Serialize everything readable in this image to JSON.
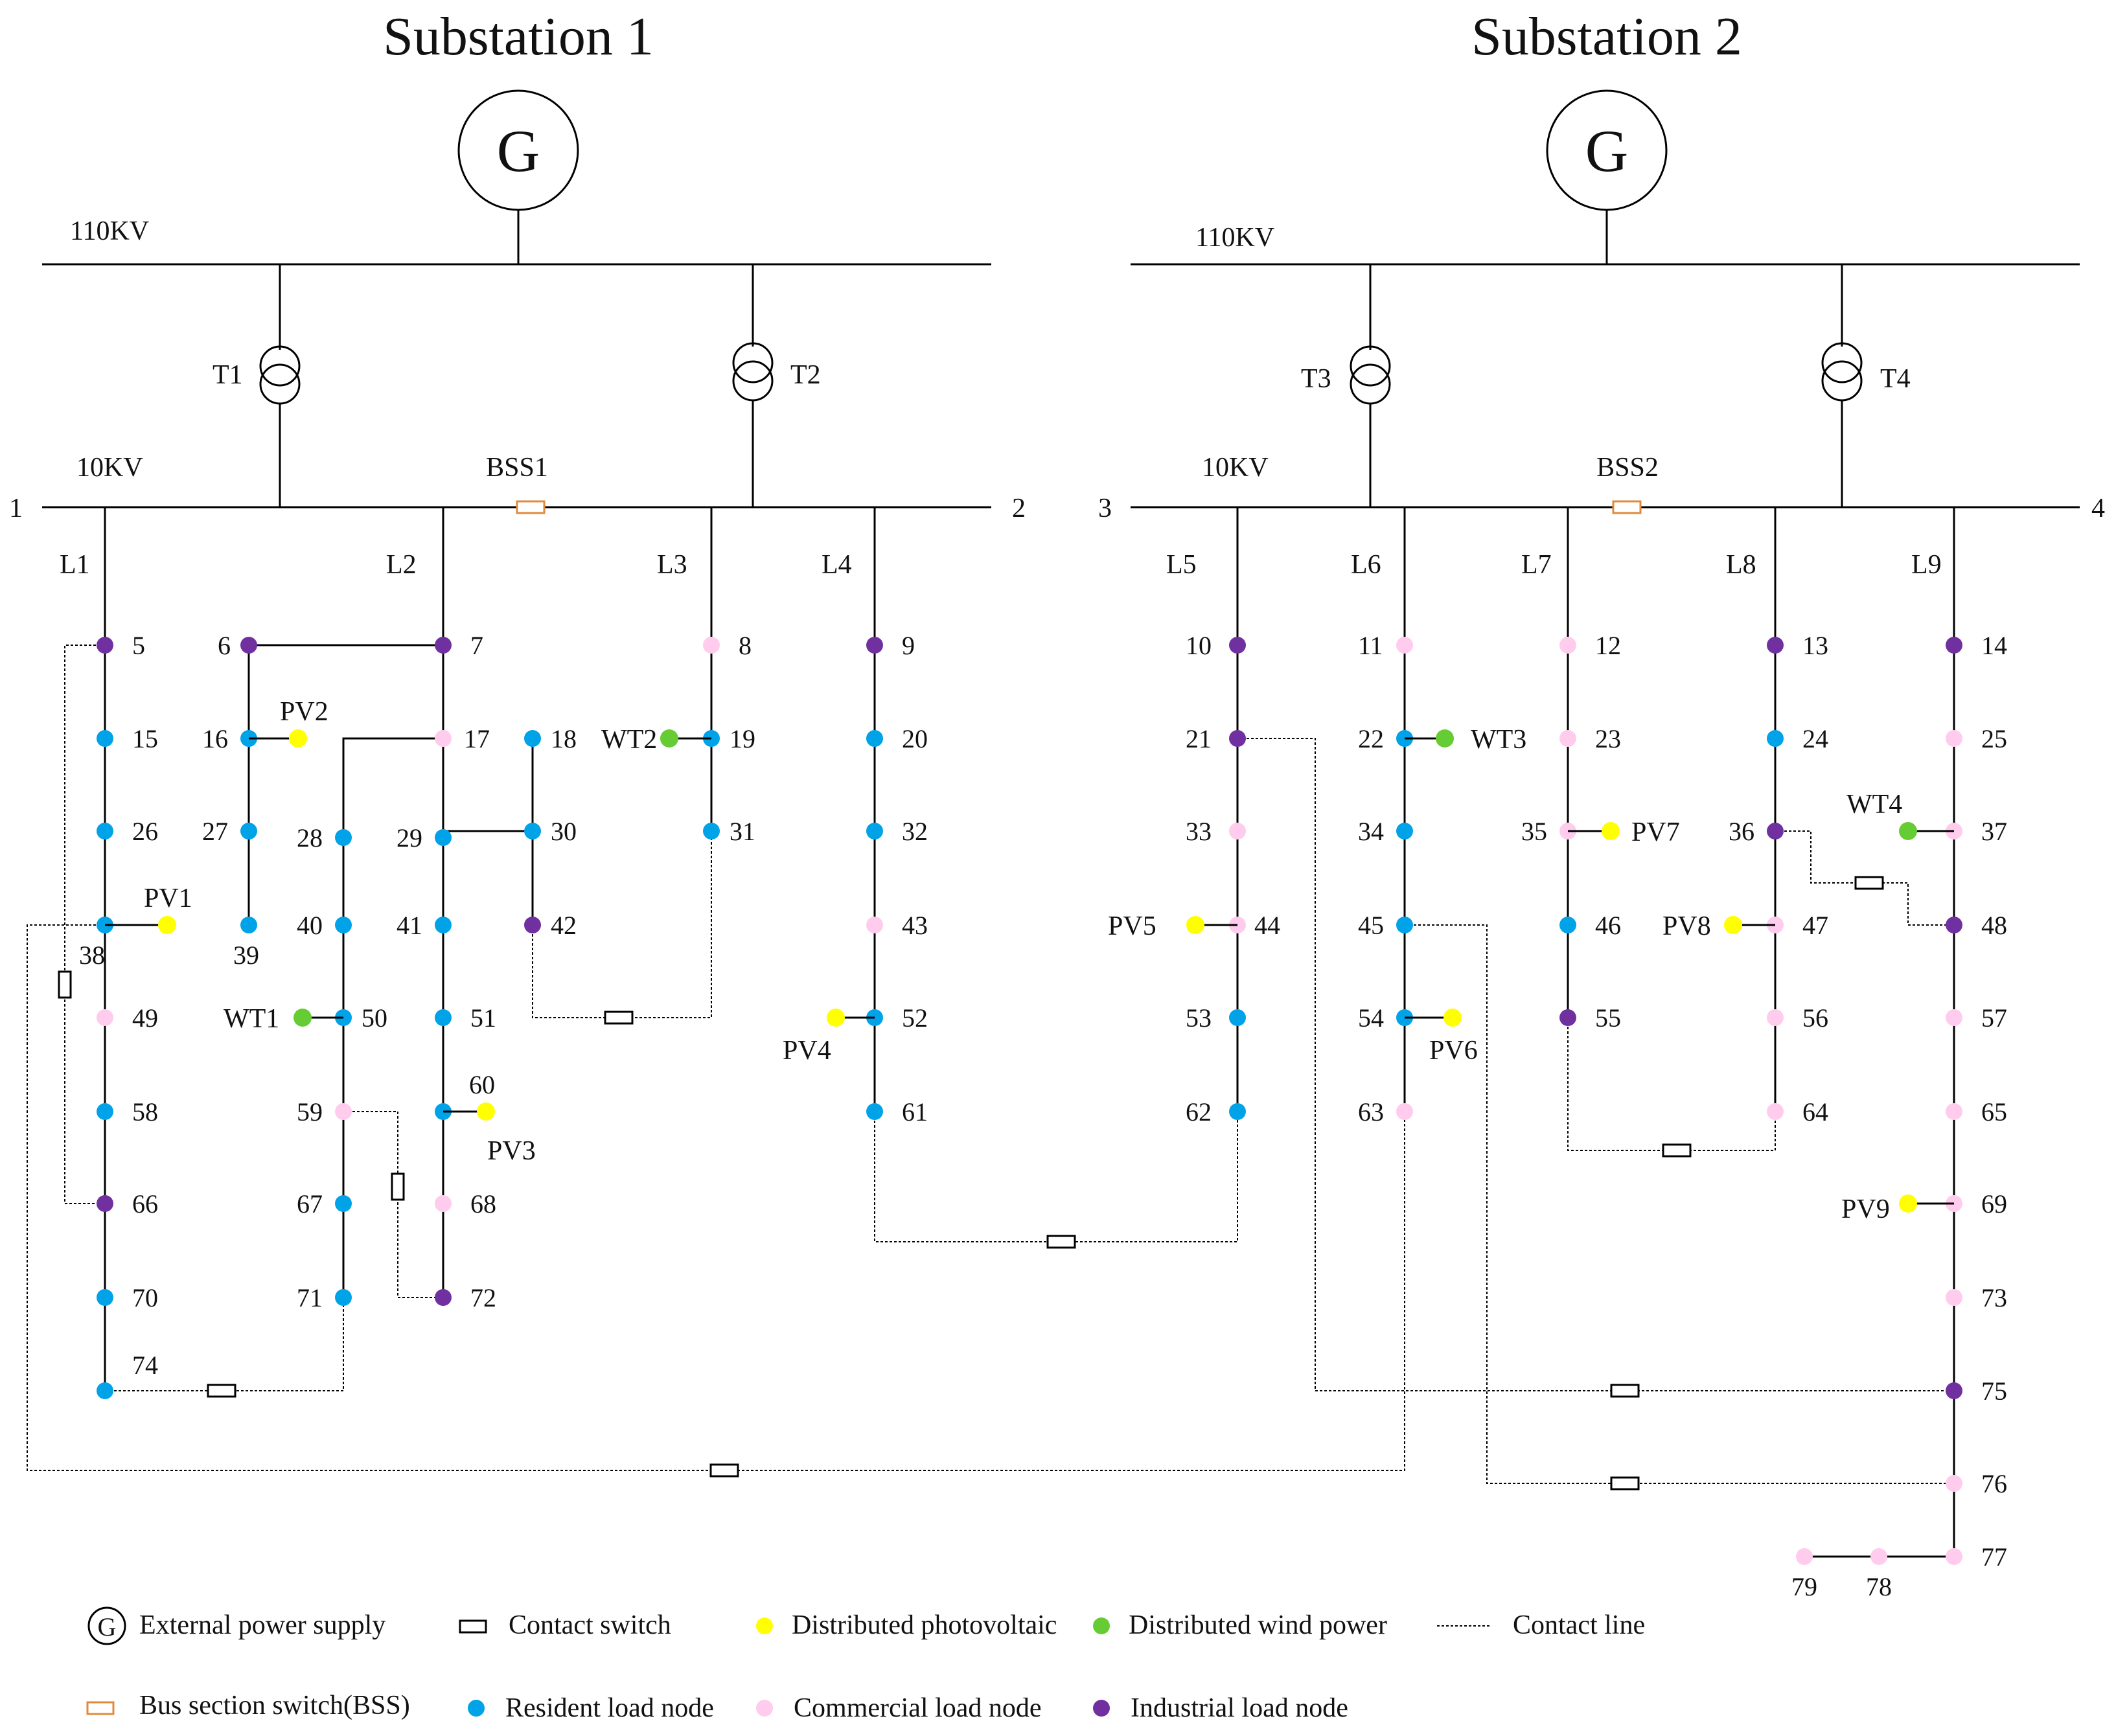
{
  "titles": {
    "substation1": "Substation 1",
    "substation2": "Substation 2"
  },
  "generator_symbol": "G",
  "voltage_labels": {
    "hv": "110KV",
    "lv": "10KV"
  },
  "transformers": [
    "T1",
    "T2",
    "T3",
    "T4"
  ],
  "bus_section_switches": [
    "BSS1",
    "BSS2"
  ],
  "bus_end_labels": [
    "1",
    "2",
    "3",
    "4"
  ],
  "feeders": [
    "L1",
    "L2",
    "L3",
    "L4",
    "L5",
    "L6",
    "L7",
    "L8",
    "L9"
  ],
  "node_types": {
    "resident": {
      "color": "#00A2E8"
    },
    "commercial": {
      "color": "#FFCCEE"
    },
    "industrial": {
      "color": "#7030A0"
    }
  },
  "der_colors": {
    "pv": "#FFFF00",
    "wt": "#66CC33"
  },
  "nodes": [
    {
      "id": "5",
      "type": "industrial"
    },
    {
      "id": "6",
      "type": "industrial"
    },
    {
      "id": "7",
      "type": "industrial"
    },
    {
      "id": "8",
      "type": "commercial"
    },
    {
      "id": "9",
      "type": "industrial"
    },
    {
      "id": "10",
      "type": "industrial"
    },
    {
      "id": "11",
      "type": "commercial"
    },
    {
      "id": "12",
      "type": "commercial"
    },
    {
      "id": "13",
      "type": "industrial"
    },
    {
      "id": "14",
      "type": "industrial"
    },
    {
      "id": "15",
      "type": "resident"
    },
    {
      "id": "16",
      "type": "resident"
    },
    {
      "id": "17",
      "type": "commercial"
    },
    {
      "id": "18",
      "type": "resident"
    },
    {
      "id": "19",
      "type": "resident"
    },
    {
      "id": "20",
      "type": "resident"
    },
    {
      "id": "21",
      "type": "industrial"
    },
    {
      "id": "22",
      "type": "resident"
    },
    {
      "id": "23",
      "type": "commercial"
    },
    {
      "id": "24",
      "type": "resident"
    },
    {
      "id": "25",
      "type": "commercial"
    },
    {
      "id": "26",
      "type": "resident"
    },
    {
      "id": "27",
      "type": "resident"
    },
    {
      "id": "28",
      "type": "resident"
    },
    {
      "id": "29",
      "type": "resident"
    },
    {
      "id": "30",
      "type": "resident"
    },
    {
      "id": "31",
      "type": "resident"
    },
    {
      "id": "32",
      "type": "resident"
    },
    {
      "id": "33",
      "type": "commercial"
    },
    {
      "id": "34",
      "type": "resident"
    },
    {
      "id": "35",
      "type": "commercial"
    },
    {
      "id": "36",
      "type": "industrial"
    },
    {
      "id": "37",
      "type": "commercial"
    },
    {
      "id": "38",
      "type": "resident"
    },
    {
      "id": "39",
      "type": "resident"
    },
    {
      "id": "40",
      "type": "resident"
    },
    {
      "id": "41",
      "type": "resident"
    },
    {
      "id": "42",
      "type": "industrial"
    },
    {
      "id": "43",
      "type": "commercial"
    },
    {
      "id": "44",
      "type": "commercial"
    },
    {
      "id": "45",
      "type": "resident"
    },
    {
      "id": "46",
      "type": "resident"
    },
    {
      "id": "47",
      "type": "commercial"
    },
    {
      "id": "48",
      "type": "industrial"
    },
    {
      "id": "49",
      "type": "commercial"
    },
    {
      "id": "50",
      "type": "resident"
    },
    {
      "id": "51",
      "type": "resident"
    },
    {
      "id": "52",
      "type": "resident"
    },
    {
      "id": "53",
      "type": "resident"
    },
    {
      "id": "54",
      "type": "resident"
    },
    {
      "id": "55",
      "type": "industrial"
    },
    {
      "id": "56",
      "type": "commercial"
    },
    {
      "id": "57",
      "type": "commercial"
    },
    {
      "id": "58",
      "type": "resident"
    },
    {
      "id": "59",
      "type": "commercial"
    },
    {
      "id": "60",
      "type": "resident"
    },
    {
      "id": "61",
      "type": "resident"
    },
    {
      "id": "62",
      "type": "resident"
    },
    {
      "id": "63",
      "type": "commercial"
    },
    {
      "id": "64",
      "type": "commercial"
    },
    {
      "id": "65",
      "type": "commercial"
    },
    {
      "id": "66",
      "type": "industrial"
    },
    {
      "id": "67",
      "type": "resident"
    },
    {
      "id": "68",
      "type": "commercial"
    },
    {
      "id": "69",
      "type": "commercial"
    },
    {
      "id": "70",
      "type": "resident"
    },
    {
      "id": "71",
      "type": "resident"
    },
    {
      "id": "72",
      "type": "industrial"
    },
    {
      "id": "73",
      "type": "commercial"
    },
    {
      "id": "74",
      "type": "resident"
    },
    {
      "id": "75",
      "type": "industrial"
    },
    {
      "id": "76",
      "type": "commercial"
    },
    {
      "id": "77",
      "type": "commercial"
    },
    {
      "id": "78",
      "type": "commercial"
    },
    {
      "id": "79",
      "type": "commercial"
    }
  ],
  "der": [
    {
      "id": "PV1",
      "kind": "pv",
      "node": "38"
    },
    {
      "id": "PV2",
      "kind": "pv",
      "node": "16"
    },
    {
      "id": "PV3",
      "kind": "pv",
      "node": "60"
    },
    {
      "id": "PV4",
      "kind": "pv",
      "node": "52"
    },
    {
      "id": "PV5",
      "kind": "pv",
      "node": "44"
    },
    {
      "id": "PV6",
      "kind": "pv",
      "node": "54"
    },
    {
      "id": "PV7",
      "kind": "pv",
      "node": "35"
    },
    {
      "id": "PV8",
      "kind": "pv",
      "node": "47"
    },
    {
      "id": "PV9",
      "kind": "pv",
      "node": "69"
    },
    {
      "id": "WT1",
      "kind": "wt",
      "node": "50"
    },
    {
      "id": "WT2",
      "kind": "wt",
      "node": "19"
    },
    {
      "id": "WT3",
      "kind": "wt",
      "node": "22"
    },
    {
      "id": "WT4",
      "kind": "wt",
      "node": "37"
    }
  ],
  "legend": {
    "external_power_supply": "External power supply",
    "contact_switch": "Contact switch",
    "distributed_photovoltaic": "Distributed photovoltaic",
    "distributed_wind_power": "Distributed wind power",
    "contact_line": "Contact line",
    "bus_section_switch": "Bus section switch(BSS)",
    "resident_load_node": "Resident load node",
    "commercial_load_node": "Commercial load node",
    "industrial_load_node": "Industrial load node"
  }
}
